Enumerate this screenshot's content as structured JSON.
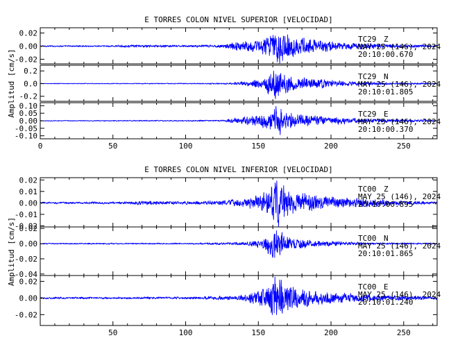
{
  "colors": {
    "trace": "#0000ff",
    "axis": "#000000",
    "background": "#ffffff"
  },
  "chart_data": [
    {
      "type": "line",
      "title": "E TORRES COLON NIVEL SUPERIOR [VELOCIDAD]",
      "ylabel": "Amplitud [cm/s]",
      "xlabel": "",
      "xlim": [
        0,
        273
      ],
      "x_ticks": [
        0,
        50,
        100,
        150,
        200,
        250
      ],
      "show_x_tick_labels": true,
      "grid": false,
      "panels": [
        {
          "ylim": [
            -0.027,
            0.028
          ],
          "y_ticks": [
            0.02,
            0.0,
            -0.02
          ],
          "y_tick_labels": [
            "0.02",
            "0.00",
            "-0.02"
          ],
          "station": "TC29",
          "component": "Z",
          "date": "MAY 25 (146), 2024",
          "time": "20:10:00.670",
          "envelope": [
            {
              "x": 0,
              "amp": 0.0011
            },
            {
              "x": 40,
              "amp": 0.0013
            },
            {
              "x": 70,
              "amp": 0.0022
            },
            {
              "x": 100,
              "amp": 0.0017
            },
            {
              "x": 125,
              "amp": 0.0024
            },
            {
              "x": 135,
              "amp": 0.007
            },
            {
              "x": 150,
              "amp": 0.01
            },
            {
              "x": 158,
              "amp": 0.018
            },
            {
              "x": 162,
              "amp": 0.026
            },
            {
              "x": 166,
              "amp": 0.028
            },
            {
              "x": 172,
              "amp": 0.018
            },
            {
              "x": 185,
              "amp": 0.012
            },
            {
              "x": 200,
              "amp": 0.008
            },
            {
              "x": 225,
              "amp": 0.0045
            },
            {
              "x": 250,
              "amp": 0.0025
            },
            {
              "x": 273,
              "amp": 0.0018
            }
          ]
        },
        {
          "ylim": [
            -0.28,
            0.29
          ],
          "y_ticks": [
            0.2,
            0.0,
            -0.2
          ],
          "y_tick_labels": [
            "0.2",
            "0.0",
            "-0.2"
          ],
          "station": "TC29",
          "component": "N",
          "date": "MAY 25 (146), 2024",
          "time": "20:10:01.805",
          "envelope": [
            {
              "x": 0,
              "amp": 0.006
            },
            {
              "x": 100,
              "amp": 0.008
            },
            {
              "x": 130,
              "amp": 0.012
            },
            {
              "x": 140,
              "amp": 0.04
            },
            {
              "x": 152,
              "amp": 0.08
            },
            {
              "x": 159,
              "amp": 0.2
            },
            {
              "x": 162,
              "amp": 0.29
            },
            {
              "x": 166,
              "amp": 0.22
            },
            {
              "x": 175,
              "amp": 0.12
            },
            {
              "x": 190,
              "amp": 0.08
            },
            {
              "x": 210,
              "amp": 0.04
            },
            {
              "x": 240,
              "amp": 0.018
            },
            {
              "x": 273,
              "amp": 0.01
            }
          ]
        },
        {
          "ylim": [
            -0.12,
            0.12
          ],
          "y_ticks": [
            0.1,
            0.05,
            0.0,
            -0.05,
            -0.1
          ],
          "y_tick_labels": [
            "0.10",
            "0.05",
            "0.00",
            "-0.05",
            "-0.10"
          ],
          "station": "TC29",
          "component": "E",
          "date": "MAY 25 (146), 2024",
          "time": "20:10:00.370",
          "envelope": [
            {
              "x": 0,
              "amp": 0.003
            },
            {
              "x": 100,
              "amp": 0.004
            },
            {
              "x": 125,
              "amp": 0.006
            },
            {
              "x": 135,
              "amp": 0.02
            },
            {
              "x": 150,
              "amp": 0.04
            },
            {
              "x": 158,
              "amp": 0.07
            },
            {
              "x": 162,
              "amp": 0.11
            },
            {
              "x": 166,
              "amp": 0.09
            },
            {
              "x": 175,
              "amp": 0.05
            },
            {
              "x": 195,
              "amp": 0.03
            },
            {
              "x": 225,
              "amp": 0.015
            },
            {
              "x": 273,
              "amp": 0.006
            }
          ]
        }
      ]
    },
    {
      "type": "line",
      "title": "E TORRES COLON NIVEL INFERIOR [VELOCIDAD]",
      "ylabel": "Amplitud [cm/s]",
      "xlabel": "",
      "xlim": [
        0,
        273
      ],
      "x_ticks": [
        50,
        100,
        150,
        200,
        250
      ],
      "show_x_tick_labels": true,
      "grid": false,
      "panels": [
        {
          "ylim": [
            -0.021,
            0.022
          ],
          "y_ticks": [
            0.02,
            0.01,
            0.0,
            -0.01,
            -0.02
          ],
          "y_tick_labels": [
            "0.02",
            "0.01",
            "0.00",
            "-0.01",
            "-0.02"
          ],
          "station": "TC00",
          "component": "Z",
          "date": "MAY 25 (146), 2024",
          "time": "20:10:00.895",
          "envelope": [
            {
              "x": 0,
              "amp": 0.0009
            },
            {
              "x": 60,
              "amp": 0.0011
            },
            {
              "x": 68,
              "amp": 0.0019
            },
            {
              "x": 100,
              "amp": 0.0014
            },
            {
              "x": 130,
              "amp": 0.0025
            },
            {
              "x": 145,
              "amp": 0.005
            },
            {
              "x": 155,
              "amp": 0.01
            },
            {
              "x": 160,
              "amp": 0.02
            },
            {
              "x": 164,
              "amp": 0.021
            },
            {
              "x": 170,
              "amp": 0.012
            },
            {
              "x": 185,
              "amp": 0.008
            },
            {
              "x": 210,
              "amp": 0.005
            },
            {
              "x": 250,
              "amp": 0.002
            },
            {
              "x": 273,
              "amp": 0.0012
            }
          ]
        },
        {
          "ylim": [
            -0.042,
            0.022
          ],
          "y_ticks": [
            0.02,
            0.0,
            -0.02,
            -0.04
          ],
          "y_tick_labels": [
            "0.02",
            "0.00",
            "-0.02",
            "-0.04"
          ],
          "station": "TC00",
          "component": "N",
          "date": "MAY 25 (146), 2024",
          "time": "20:10:01.865",
          "envelope": [
            {
              "x": 0,
              "amp": 0.0008
            },
            {
              "x": 100,
              "amp": 0.001
            },
            {
              "x": 140,
              "amp": 0.002
            },
            {
              "x": 152,
              "amp": 0.006
            },
            {
              "x": 158,
              "amp": 0.016
            },
            {
              "x": 161,
              "amp": 0.022
            },
            {
              "x": 164,
              "amp": 0.018
            },
            {
              "x": 172,
              "amp": 0.008
            },
            {
              "x": 190,
              "amp": 0.004
            },
            {
              "x": 230,
              "amp": 0.0015
            },
            {
              "x": 273,
              "amp": 0.001
            }
          ]
        },
        {
          "ylim": [
            -0.033,
            0.027
          ],
          "y_ticks": [
            0.02,
            0.0,
            -0.02
          ],
          "y_tick_labels": [
            "0.02",
            "0.00",
            "-0.02"
          ],
          "station": "TC00",
          "component": "E",
          "date": "MAY 25 (146), 2024",
          "time": "20:10:01.240",
          "envelope": [
            {
              "x": 0,
              "amp": 0.0012
            },
            {
              "x": 100,
              "amp": 0.0014
            },
            {
              "x": 135,
              "amp": 0.003
            },
            {
              "x": 148,
              "amp": 0.008
            },
            {
              "x": 156,
              "amp": 0.016
            },
            {
              "x": 160,
              "amp": 0.026
            },
            {
              "x": 164,
              "amp": 0.03
            },
            {
              "x": 170,
              "amp": 0.018
            },
            {
              "x": 185,
              "amp": 0.01
            },
            {
              "x": 210,
              "amp": 0.006
            },
            {
              "x": 250,
              "amp": 0.003
            },
            {
              "x": 273,
              "amp": 0.002
            }
          ]
        }
      ]
    }
  ]
}
